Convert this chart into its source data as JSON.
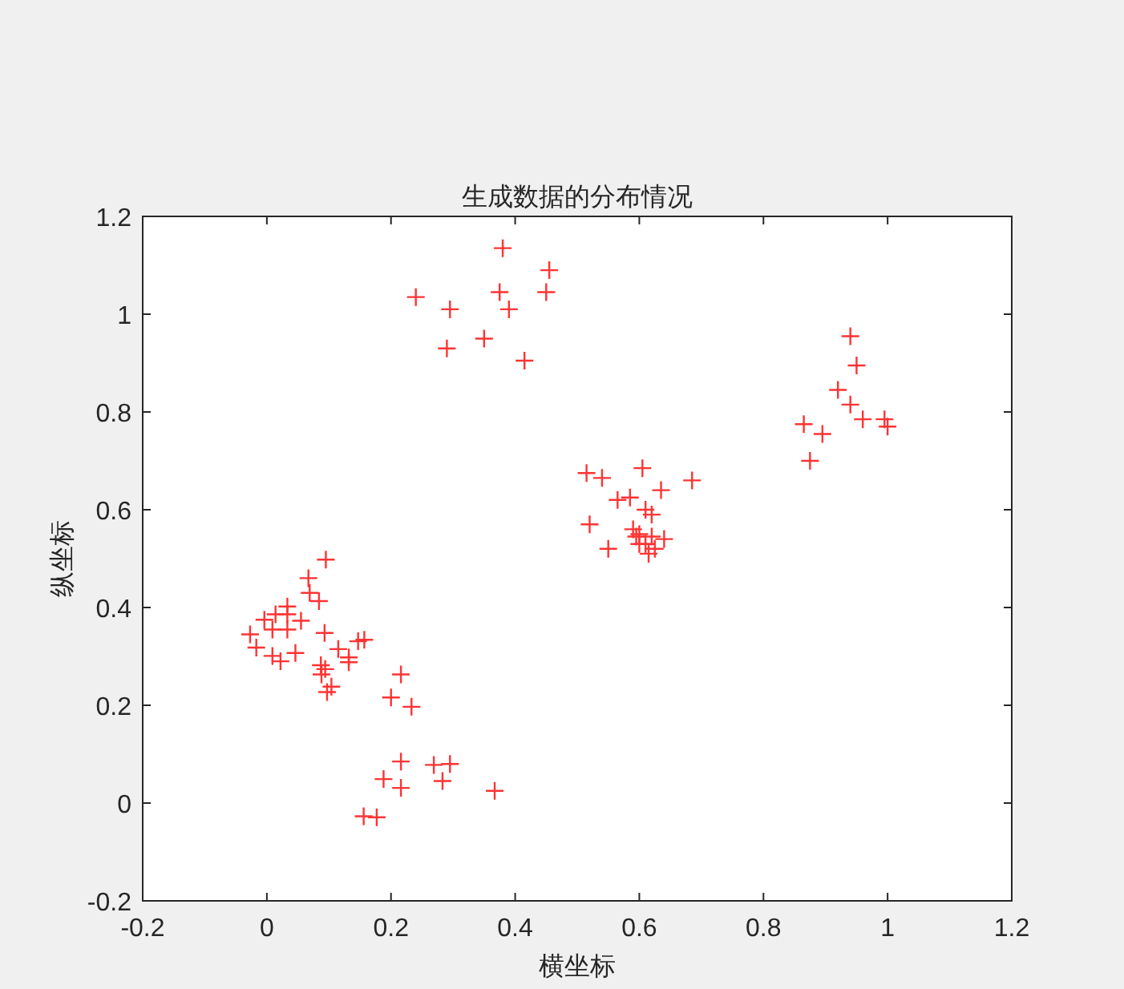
{
  "chart_data": {
    "type": "scatter",
    "title": "生成数据的分布情况",
    "xlabel": "横坐标",
    "ylabel": "纵坐标",
    "xlim": [
      -0.2,
      1.2
    ],
    "ylim": [
      -0.2,
      1.2
    ],
    "xticks": [
      -0.2,
      0,
      0.2,
      0.4,
      0.6,
      0.8,
      1,
      1.2
    ],
    "yticks": [
      -0.2,
      0,
      0.2,
      0.4,
      0.6,
      0.8,
      1,
      1.2
    ],
    "grid": false,
    "marker": "cross",
    "series": [
      {
        "color": "#ff3333",
        "x": [
          0.24,
          0.295,
          0.29,
          0.35,
          0.38,
          0.375,
          0.39,
          0.415,
          0.45,
          0.455,
          0.515,
          0.54,
          0.605,
          0.685,
          0.635,
          0.565,
          0.585,
          0.52,
          0.55,
          0.61,
          0.62,
          0.59,
          0.6,
          0.6,
          0.61,
          0.615,
          0.625,
          0.64,
          0.595,
          0.62,
          0.94,
          0.95,
          0.92,
          0.94,
          0.96,
          0.995,
          1.0,
          0.865,
          0.895,
          0.875,
          0.095,
          0.067,
          0.069,
          0.084,
          0.033,
          0.014,
          -0.004,
          0.033,
          0.055,
          0.009,
          0.033,
          -0.027,
          0.093,
          -0.017,
          0.009,
          0.022,
          0.046,
          0.115,
          0.132,
          0.132,
          0.147,
          0.157,
          0.087,
          0.094,
          0.088,
          0.104,
          0.097,
          0.216,
          0.2,
          0.233,
          0.216,
          0.188,
          0.216,
          0.269,
          0.295,
          0.283,
          0.367,
          0.156,
          0.177
        ],
        "values": [
          1.035,
          1.01,
          0.93,
          0.95,
          1.135,
          1.045,
          1.01,
          0.905,
          1.045,
          1.09,
          0.675,
          0.665,
          0.685,
          0.66,
          0.64,
          0.62,
          0.625,
          0.57,
          0.52,
          0.6,
          0.59,
          0.56,
          0.55,
          0.53,
          0.53,
          0.51,
          0.52,
          0.54,
          0.545,
          0.545,
          0.955,
          0.895,
          0.845,
          0.815,
          0.785,
          0.785,
          0.77,
          0.775,
          0.755,
          0.7,
          0.498,
          0.46,
          0.43,
          0.413,
          0.402,
          0.386,
          0.375,
          0.386,
          0.373,
          0.355,
          0.355,
          0.345,
          0.348,
          0.318,
          0.301,
          0.29,
          0.307,
          0.315,
          0.298,
          0.288,
          0.331,
          0.334,
          0.282,
          0.274,
          0.263,
          0.238,
          0.227,
          0.263,
          0.216,
          0.197,
          0.085,
          0.049,
          0.031,
          0.078,
          0.08,
          0.045,
          0.025,
          -0.027,
          -0.029
        ]
      }
    ]
  }
}
